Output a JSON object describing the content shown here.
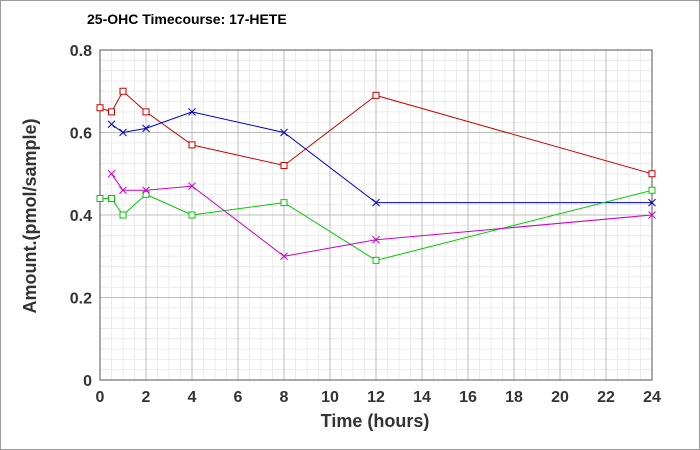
{
  "chart_data": {
    "type": "line",
    "title": "25-OHC Timecourse: 17-HETE",
    "xlabel": "Time (hours)",
    "ylabel": "Amount.(pmol/sample)",
    "xlim": [
      0,
      24
    ],
    "ylim": [
      0,
      0.8
    ],
    "x_ticks": [
      "0",
      "2",
      "4",
      "6",
      "8",
      "10",
      "12",
      "14",
      "16",
      "18",
      "20",
      "22",
      "24"
    ],
    "y_ticks": [
      "0",
      "0.2",
      "0.4",
      "0.6",
      "0.8"
    ],
    "grid": true,
    "series": [
      {
        "color": "#cc0000",
        "marker": "square",
        "points": [
          [
            0,
            0.66
          ],
          [
            0.5,
            0.65
          ],
          [
            1,
            0.7
          ],
          [
            2,
            0.65
          ],
          [
            4,
            0.57
          ],
          [
            8,
            0.52
          ],
          [
            12,
            0.69
          ],
          [
            24,
            0.5
          ]
        ]
      },
      {
        "color": "#0000cc",
        "marker": "cross",
        "points": [
          [
            0.5,
            0.62
          ],
          [
            1,
            0.6
          ],
          [
            2,
            0.61
          ],
          [
            4,
            0.65
          ],
          [
            8,
            0.6
          ],
          [
            12,
            0.43
          ],
          [
            24,
            0.43
          ]
        ]
      },
      {
        "color": "#00cc00",
        "marker": "square",
        "points": [
          [
            0,
            0.44
          ],
          [
            0.5,
            0.44
          ],
          [
            1,
            0.4
          ],
          [
            2,
            0.45
          ],
          [
            4,
            0.4
          ],
          [
            8,
            0.43
          ],
          [
            12,
            0.29
          ],
          [
            24,
            0.46
          ]
        ]
      },
      {
        "color": "#cc00cc",
        "marker": "cross",
        "points": [
          [
            0.5,
            0.5
          ],
          [
            1,
            0.46
          ],
          [
            2,
            0.46
          ],
          [
            4,
            0.47
          ],
          [
            8,
            0.3
          ],
          [
            12,
            0.34
          ],
          [
            24,
            0.4
          ]
        ]
      }
    ]
  }
}
